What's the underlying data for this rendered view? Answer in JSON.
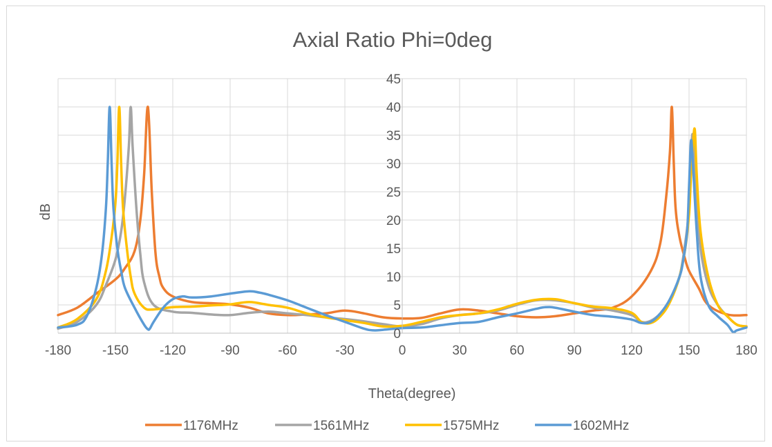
{
  "chart_data": {
    "type": "line",
    "title": "Axial Ratio Phi=0deg",
    "xlabel": "Theta(degree)",
    "ylabel": "dB",
    "xlim": [
      -180,
      180
    ],
    "ylim": [
      0,
      45
    ],
    "xticks": [
      -180,
      -150,
      -120,
      -90,
      -60,
      -30,
      0,
      30,
      60,
      90,
      120,
      150,
      180
    ],
    "yticks": [
      0,
      5,
      10,
      15,
      20,
      25,
      30,
      35,
      40,
      45
    ],
    "grid": true,
    "legend_position": "bottom",
    "series": [
      {
        "name": "1176MHz",
        "color": "#ED7D31",
        "x": [
          -180,
          -170,
          -160,
          -150,
          -145,
          -140,
          -137,
          -135,
          -133,
          -131,
          -129,
          -127,
          -125,
          -120,
          -110,
          -100,
          -90,
          -80,
          -70,
          -60,
          -50,
          -40,
          -30,
          -20,
          -10,
          0,
          10,
          20,
          30,
          40,
          50,
          60,
          70,
          80,
          90,
          100,
          110,
          120,
          130,
          135,
          138,
          140,
          141,
          142,
          143,
          145,
          148,
          150,
          155,
          160,
          170,
          180
        ],
        "y": [
          3.2,
          4.5,
          7,
          9.5,
          11.5,
          14.5,
          20,
          28,
          40,
          25,
          14,
          10,
          8,
          6.5,
          5.5,
          5.3,
          5.1,
          4.5,
          3.5,
          3.2,
          3.3,
          3.5,
          4,
          3.5,
          2.8,
          2.6,
          2.7,
          3.5,
          4.2,
          4,
          3.5,
          3,
          2.8,
          3,
          3.5,
          4,
          4.5,
          6.5,
          11,
          16,
          24,
          32,
          40,
          30,
          22,
          17,
          13,
          11,
          8,
          5,
          3.3,
          3.2
        ]
      },
      {
        "name": "1561MHz",
        "color": "#A5A5A5",
        "x": [
          -180,
          -170,
          -160,
          -155,
          -150,
          -147,
          -145,
          -143,
          -142,
          -141,
          -139,
          -137,
          -135,
          -130,
          -120,
          -110,
          -100,
          -90,
          -80,
          -70,
          -60,
          -50,
          -40,
          -30,
          -20,
          -10,
          0,
          10,
          20,
          30,
          40,
          50,
          60,
          70,
          80,
          90,
          100,
          110,
          120,
          125,
          130,
          135,
          140,
          145,
          148,
          150,
          151,
          152,
          154,
          156,
          160,
          165,
          170,
          175,
          180
        ],
        "y": [
          0.8,
          2,
          5,
          8.5,
          13,
          18,
          24,
          33,
          40,
          33,
          22,
          14,
          9,
          5,
          3.8,
          3.6,
          3.3,
          3.2,
          3.6,
          3.8,
          3.5,
          3.2,
          2.8,
          2.5,
          2.1,
          1.6,
          1.2,
          1.6,
          2.6,
          3.2,
          3.5,
          4,
          5,
          5.8,
          5.8,
          5.3,
          4.5,
          4,
          3.2,
          2,
          2.2,
          3.5,
          6,
          10,
          16,
          22,
          30,
          35,
          24,
          15,
          8.5,
          5,
          3,
          1.5,
          1.2
        ]
      },
      {
        "name": "1575MHz",
        "color": "#FFC000",
        "x": [
          -180,
          -170,
          -160,
          -155,
          -152,
          -150,
          -149,
          -148,
          -147,
          -146,
          -144,
          -142,
          -140,
          -135,
          -130,
          -120,
          -110,
          -100,
          -90,
          -80,
          -70,
          -60,
          -50,
          -40,
          -30,
          -20,
          -10,
          0,
          10,
          20,
          30,
          40,
          50,
          60,
          70,
          80,
          90,
          100,
          110,
          120,
          125,
          130,
          135,
          140,
          145,
          148,
          150,
          151,
          152,
          153,
          154,
          156,
          160,
          165,
          170,
          175,
          180
        ],
        "y": [
          1,
          2.5,
          6,
          11,
          17,
          23,
          30,
          40,
          30,
          22,
          15,
          10,
          7,
          4.5,
          4.2,
          4.6,
          4.7,
          4.9,
          5.1,
          5.5,
          5,
          4.5,
          3.5,
          2.8,
          2.3,
          1.8,
          1.2,
          1.3,
          2,
          2.8,
          3.2,
          3.5,
          4.2,
          5.2,
          5.9,
          6,
          5.3,
          4.7,
          4.4,
          3.6,
          2,
          1.8,
          3,
          5.5,
          10,
          15,
          21,
          28,
          33,
          36,
          28,
          18,
          10,
          5,
          3,
          1.5,
          1.2
        ]
      },
      {
        "name": "1602MHz",
        "color": "#5B9BD5",
        "x": [
          -180,
          -170,
          -165,
          -160,
          -157,
          -155,
          -154,
          -153,
          -152,
          -151,
          -149,
          -147,
          -145,
          -140,
          -135,
          -133,
          -132,
          -130,
          -125,
          -120,
          -115,
          -110,
          -100,
          -90,
          -80,
          -75,
          -70,
          -60,
          -50,
          -40,
          -30,
          -20,
          -15,
          -10,
          0,
          10,
          20,
          30,
          40,
          50,
          60,
          70,
          75,
          80,
          90,
          100,
          110,
          120,
          125,
          130,
          135,
          140,
          145,
          147,
          149,
          150,
          151,
          152,
          154,
          156,
          160,
          165,
          170,
          173,
          175,
          180
        ],
        "y": [
          1,
          1.5,
          3,
          8,
          14,
          22,
          30,
          40,
          30,
          22,
          15,
          11,
          8,
          4.5,
          1.5,
          0.7,
          0.8,
          2,
          4.5,
          6,
          6.5,
          6.3,
          6.5,
          7,
          7.4,
          7.2,
          6.8,
          5.8,
          4.5,
          3.2,
          2,
          0.8,
          0.5,
          0.6,
          0.9,
          1,
          1.4,
          1.8,
          2,
          2.8,
          3.5,
          4.3,
          4.6,
          4.5,
          3.8,
          3.2,
          2.9,
          2.4,
          1.8,
          2,
          3.5,
          6,
          10,
          13,
          18,
          26,
          34,
          30,
          18,
          10,
          5,
          3,
          1.5,
          0.2,
          0.5,
          1
        ]
      }
    ]
  }
}
